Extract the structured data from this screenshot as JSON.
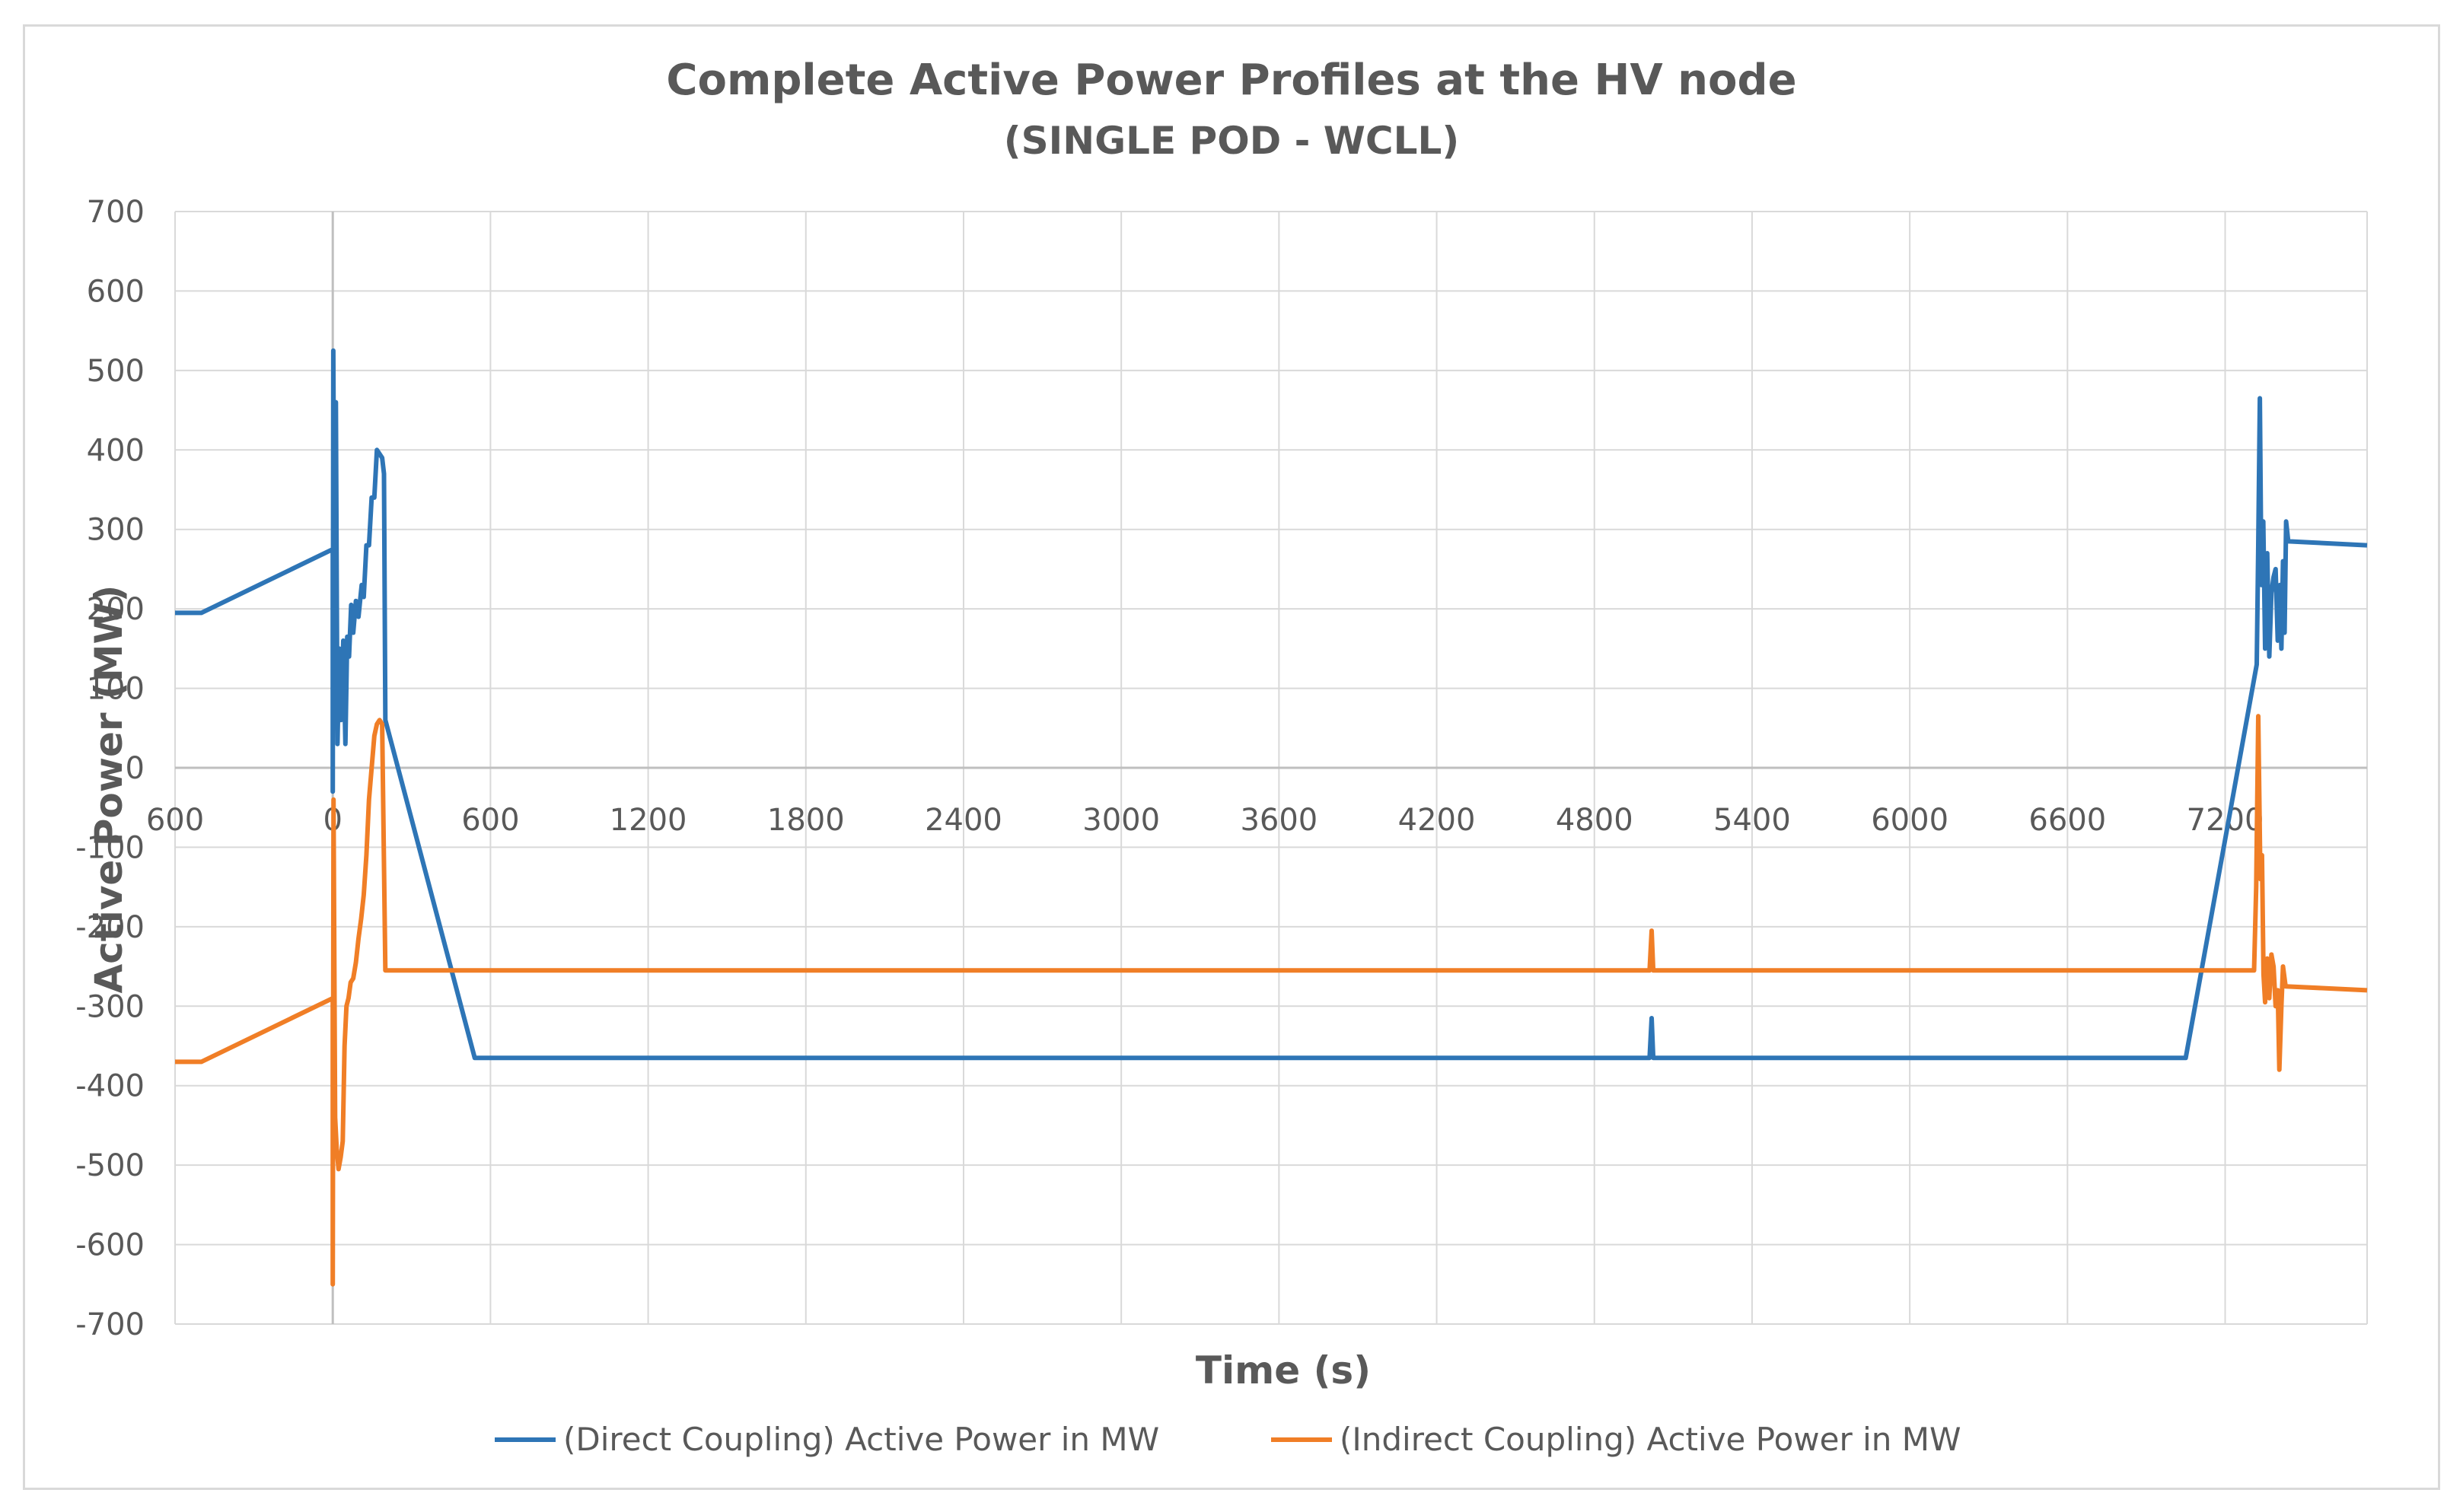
{
  "chart_data": {
    "type": "line",
    "title": "Complete Active Power Profiles at the HV node",
    "subtitle": "(SINGLE POD - WCLL)",
    "xlabel": "Time (s)",
    "ylabel": "Active Power (MW)",
    "xlim": [
      -600,
      7740
    ],
    "ylim": [
      -700,
      700
    ],
    "x_ticks": [
      -600,
      0,
      600,
      1200,
      1800,
      2400,
      3000,
      3600,
      4200,
      4800,
      5400,
      6000,
      6600,
      7200
    ],
    "x_tick_labels": [
      "600",
      "0",
      "600",
      "1200",
      "1800",
      "2400",
      "3000",
      "3600",
      "4200",
      "4800",
      "5400",
      "6000",
      "6600",
      "7200"
    ],
    "y_ticks": [
      -700,
      -600,
      -500,
      -400,
      -300,
      -200,
      -100,
      0,
      100,
      200,
      300,
      400,
      500,
      600,
      700
    ],
    "y_tick_labels": [
      "-700",
      "-600",
      "-500",
      "-400",
      "-300",
      "-200",
      "-100",
      "0",
      "100",
      "200",
      "300",
      "400",
      "500",
      "600",
      "700"
    ],
    "grid": true,
    "legend_position": "bottom",
    "series": [
      {
        "name": "(Direct Coupling) Active Power in MW",
        "color": "#2e75b6",
        "points": [
          [
            -600,
            195
          ],
          [
            -500,
            195
          ],
          [
            0,
            275
          ],
          [
            0,
            -30
          ],
          [
            2,
            525
          ],
          [
            8,
            80
          ],
          [
            12,
            460
          ],
          [
            18,
            30
          ],
          [
            25,
            150
          ],
          [
            32,
            60
          ],
          [
            40,
            160
          ],
          [
            48,
            30
          ],
          [
            55,
            165
          ],
          [
            62,
            140
          ],
          [
            70,
            205
          ],
          [
            78,
            170
          ],
          [
            88,
            210
          ],
          [
            98,
            190
          ],
          [
            110,
            230
          ],
          [
            118,
            215
          ],
          [
            128,
            280
          ],
          [
            138,
            280
          ],
          [
            148,
            340
          ],
          [
            158,
            340
          ],
          [
            168,
            400
          ],
          [
            178,
            395
          ],
          [
            188,
            390
          ],
          [
            195,
            370
          ],
          [
            200,
            60
          ],
          [
            540,
            -365
          ],
          [
            5010,
            -365
          ],
          [
            5018,
            -315
          ],
          [
            5024,
            -365
          ],
          [
            7050,
            -365
          ],
          [
            7320,
            130
          ],
          [
            7326,
            280
          ],
          [
            7332,
            465
          ],
          [
            7338,
            230
          ],
          [
            7345,
            310
          ],
          [
            7352,
            150
          ],
          [
            7360,
            270
          ],
          [
            7368,
            140
          ],
          [
            7376,
            220
          ],
          [
            7384,
            240
          ],
          [
            7392,
            250
          ],
          [
            7400,
            160
          ],
          [
            7408,
            230
          ],
          [
            7414,
            150
          ],
          [
            7420,
            260
          ],
          [
            7426,
            170
          ],
          [
            7432,
            310
          ],
          [
            7440,
            285
          ],
          [
            7740,
            280
          ]
        ]
      },
      {
        "name": "(Indirect Coupling) Active Power in MW",
        "color": "#f07e26",
        "points": [
          [
            -600,
            -370
          ],
          [
            -500,
            -370
          ],
          [
            0,
            -290
          ],
          [
            0,
            -650
          ],
          [
            3,
            -40
          ],
          [
            9,
            -440
          ],
          [
            15,
            -480
          ],
          [
            22,
            -505
          ],
          [
            30,
            -490
          ],
          [
            38,
            -470
          ],
          [
            45,
            -350
          ],
          [
            52,
            -300
          ],
          [
            60,
            -290
          ],
          [
            68,
            -270
          ],
          [
            78,
            -265
          ],
          [
            88,
            -245
          ],
          [
            98,
            -215
          ],
          [
            108,
            -190
          ],
          [
            118,
            -160
          ],
          [
            128,
            -110
          ],
          [
            138,
            -40
          ],
          [
            148,
            0
          ],
          [
            158,
            40
          ],
          [
            168,
            55
          ],
          [
            178,
            60
          ],
          [
            188,
            55
          ],
          [
            200,
            -255
          ],
          [
            5010,
            -255
          ],
          [
            5018,
            -205
          ],
          [
            5024,
            -255
          ],
          [
            7310,
            -255
          ],
          [
            7318,
            -150
          ],
          [
            7326,
            65
          ],
          [
            7334,
            -140
          ],
          [
            7340,
            -110
          ],
          [
            7346,
            -260
          ],
          [
            7352,
            -295
          ],
          [
            7360,
            -240
          ],
          [
            7368,
            -290
          ],
          [
            7376,
            -235
          ],
          [
            7384,
            -250
          ],
          [
            7392,
            -300
          ],
          [
            7400,
            -280
          ],
          [
            7406,
            -380
          ],
          [
            7414,
            -300
          ],
          [
            7420,
            -250
          ],
          [
            7430,
            -275
          ],
          [
            7740,
            -280
          ]
        ]
      }
    ]
  }
}
